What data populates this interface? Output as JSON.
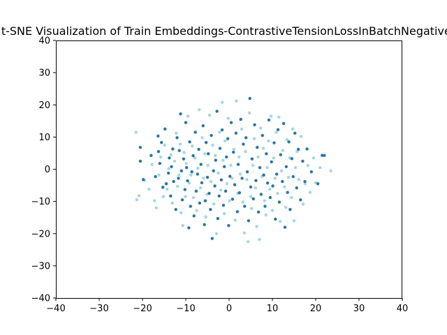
{
  "chart_data": {
    "type": "scatter",
    "title": "t-SNE Visualization of Train Embeddings-ContrastiveTensionLossInBatchNegatives",
    "xlabel": "",
    "ylabel": "",
    "xlim": [
      -40,
      40
    ],
    "ylim": [
      -40,
      40
    ],
    "xticks": [
      "−40",
      "−30",
      "−20",
      "−10",
      "0",
      "10",
      "20",
      "30",
      "40"
    ],
    "yticks": [
      "−40",
      "−30",
      "−20",
      "−10",
      "0",
      "10",
      "20",
      "30",
      "40"
    ],
    "grid": false,
    "legend": "none",
    "colors": {
      "dark": "#1f77b4",
      "light": "#9edae5"
    },
    "series": [
      {
        "color": "#1f77b4",
        "points": [
          [
            -20.5,
            6.8
          ],
          [
            -20.5,
            2.5
          ],
          [
            -19.8,
            -3.2
          ],
          [
            -18,
            4.3
          ],
          [
            -17,
            -2.3
          ],
          [
            -16.4,
            10.3
          ],
          [
            -16.3,
            5.5
          ],
          [
            -16,
            1.8
          ],
          [
            -15.6,
            8.3
          ],
          [
            -15.3,
            -5.6
          ],
          [
            -14.8,
            12.5
          ],
          [
            -14.5,
            -4.5
          ],
          [
            -14,
            -1.2
          ],
          [
            -13.8,
            3.5
          ],
          [
            -13.5,
            -8.3
          ],
          [
            -13.3,
            0.8
          ],
          [
            -13,
            6.3
          ],
          [
            -12.8,
            -3.8
          ],
          [
            -12.3,
            -12.5
          ],
          [
            -12,
            9.8
          ],
          [
            -11.7,
            -2.8
          ],
          [
            -11.5,
            5.8
          ],
          [
            -11.2,
            17.2
          ],
          [
            -11,
            -0.5
          ],
          [
            -10.8,
            -9.5
          ],
          [
            -10.5,
            3.2
          ],
          [
            -10.2,
            -6.3
          ],
          [
            -10,
            14.5
          ],
          [
            -9.8,
            0.5
          ],
          [
            -9.6,
            -3.6
          ],
          [
            -9.3,
            -18.2
          ],
          [
            -9.1,
            8.5
          ],
          [
            -8.9,
            -11.5
          ],
          [
            -8.6,
            -0.8
          ],
          [
            -8.3,
            4.2
          ],
          [
            -8.1,
            -14.5
          ],
          [
            -7.8,
            11.5
          ],
          [
            -7.6,
            -6.8
          ],
          [
            -7.3,
            -1.5
          ],
          [
            -7,
            6.2
          ],
          [
            -6.8,
            -10.5
          ],
          [
            -6.5,
            1.5
          ],
          [
            -6.3,
            -4.2
          ],
          [
            -6,
            13.5
          ],
          [
            -5.7,
            -17.2
          ],
          [
            -5.5,
            -9.8
          ],
          [
            -5.3,
            8.3
          ],
          [
            -5,
            -2.5
          ],
          [
            -4.8,
            4.8
          ],
          [
            -4.6,
            -7.5
          ],
          [
            -4.3,
            -12.5
          ],
          [
            -4.1,
            10.5
          ],
          [
            -3.9,
            -21.5
          ],
          [
            -3.6,
            -0.5
          ],
          [
            -3.3,
            -5.2
          ],
          [
            -3.1,
            2.8
          ],
          [
            -2.8,
            18
          ],
          [
            -2.6,
            -15.3
          ],
          [
            -2.3,
            -8.3
          ],
          [
            -2.1,
            6.5
          ],
          [
            -1.8,
            -3.3
          ],
          [
            -1.6,
            12.2
          ],
          [
            -1.3,
            -11.2
          ],
          [
            -1.1,
            0.8
          ],
          [
            -0.8,
            -6.8
          ],
          [
            -0.6,
            3.8
          ],
          [
            -0.3,
            9.5
          ],
          [
            -0.1,
            -17.5
          ],
          [
            0.2,
            -2.2
          ],
          [
            0.5,
            14.5
          ],
          [
            0.8,
            -9.3
          ],
          [
            1,
            5.3
          ],
          [
            1.3,
            -4.8
          ],
          [
            1.6,
            11.2
          ],
          [
            1.9,
            -13.2
          ],
          [
            2.1,
            1.5
          ],
          [
            2.4,
            -7.3
          ],
          [
            2.7,
            15.5
          ],
          [
            3,
            -2.8
          ],
          [
            3.3,
            7.8
          ],
          [
            3.6,
            -11.5
          ],
          [
            3.9,
            9.8
          ],
          [
            4.2,
            -0.8
          ],
          [
            4.5,
            -16
          ],
          [
            4.8,
            22
          ],
          [
            5,
            -5.5
          ],
          [
            5.3,
            3.2
          ],
          [
            5.6,
            -9.2
          ],
          [
            5.9,
            13.8
          ],
          [
            6.2,
            -3.5
          ],
          [
            6.5,
            6.8
          ],
          [
            6.8,
            -13.3
          ],
          [
            7.1,
            0.5
          ],
          [
            7.4,
            -7.8
          ],
          [
            7.7,
            10.5
          ],
          [
            8,
            -1.8
          ],
          [
            8.3,
            -11.5
          ],
          [
            8.6,
            4.8
          ],
          [
            8.9,
            -4.3
          ],
          [
            9.2,
            15.3
          ],
          [
            9.5,
            -8.8
          ],
          [
            9.8,
            2.3
          ],
          [
            10.1,
            -5.2
          ],
          [
            10.4,
            8.2
          ],
          [
            10.7,
            -15.5
          ],
          [
            11,
            -1.5
          ],
          [
            11.3,
            12.3
          ],
          [
            11.6,
            -10.2
          ],
          [
            11.9,
            4.5
          ],
          [
            12.3,
            -3.8
          ],
          [
            12.6,
            14.2
          ],
          [
            12.9,
            -18
          ],
          [
            13.2,
            0.8
          ],
          [
            13.5,
            -7.2
          ],
          [
            13.8,
            8.5
          ],
          [
            14.1,
            -12.5
          ],
          [
            14.5,
            3.3
          ],
          [
            14.8,
            -2.3
          ],
          [
            15.2,
            11.2
          ],
          [
            15.6,
            -5.8
          ],
          [
            16,
            6.2
          ],
          [
            16.5,
            -9.5
          ],
          [
            17,
            2.5
          ],
          [
            17.5,
            -3.8
          ],
          [
            18,
            6.3
          ],
          [
            19,
            -0.8
          ],
          [
            20.5,
            -4.5
          ],
          [
            21.5,
            4.3
          ],
          [
            22,
            4.3
          ]
        ]
      },
      {
        "color": "#9edae5",
        "points": [
          [
            -21.5,
            11.5
          ],
          [
            -21.3,
            -9.5
          ],
          [
            -20.8,
            -8.2
          ],
          [
            -19.5,
            -3.5
          ],
          [
            -18.5,
            -6.2
          ],
          [
            -17.8,
            1.5
          ],
          [
            -17.2,
            -9.8
          ],
          [
            -16.8,
            -12
          ],
          [
            -16.2,
            -1.8
          ],
          [
            -15.8,
            3.8
          ],
          [
            -15.2,
            -8.5
          ],
          [
            -14.9,
            7.5
          ],
          [
            -14.3,
            -6.2
          ],
          [
            -13.9,
            0.2
          ],
          [
            -13.4,
            4.5
          ],
          [
            -13.1,
            -10.5
          ],
          [
            -12.6,
            2.5
          ],
          [
            -12.2,
            11.2
          ],
          [
            -11.9,
            -5.3
          ],
          [
            -11.6,
            -1.8
          ],
          [
            -11.3,
            7.8
          ],
          [
            -11.1,
            -13.5
          ],
          [
            -10.7,
            -17.5
          ],
          [
            -10.4,
            5.2
          ],
          [
            -10.1,
            -8.5
          ],
          [
            -9.9,
            1.8
          ],
          [
            -9.5,
            16.5
          ],
          [
            -9.2,
            -4.3
          ],
          [
            -8.8,
            -1.8
          ],
          [
            -8.5,
            7.2
          ],
          [
            -8.2,
            -8.8
          ],
          [
            -7.9,
            3.5
          ],
          [
            -7.5,
            -12.8
          ],
          [
            -7.2,
            0.3
          ],
          [
            -6.9,
            18.5
          ],
          [
            -6.6,
            -5.8
          ],
          [
            -6.2,
            9.8
          ],
          [
            -5.9,
            -2.8
          ],
          [
            -5.6,
            4.8
          ],
          [
            -5.4,
            -14.8
          ],
          [
            -5.1,
            -7.8
          ],
          [
            -4.9,
            1.2
          ],
          [
            -4.5,
            16.8
          ],
          [
            -4.2,
            -3.8
          ],
          [
            -3.8,
            7.5
          ],
          [
            -3.5,
            -10.8
          ],
          [
            -3.2,
            4.3
          ],
          [
            -2.9,
            -20
          ],
          [
            -2.5,
            -1.2
          ],
          [
            -2.2,
            11.5
          ],
          [
            -1.9,
            -6.5
          ],
          [
            -1.6,
            20.8
          ],
          [
            -1.4,
            2.8
          ],
          [
            -1.1,
            -13.8
          ],
          [
            -0.9,
            8.8
          ],
          [
            -0.5,
            -4.5
          ],
          [
            -0.2,
            15.8
          ],
          [
            0.1,
            -9.8
          ],
          [
            0.4,
            1.2
          ],
          [
            0.7,
            -2.8
          ],
          [
            1.1,
            6.2
          ],
          [
            1.4,
            -15.8
          ],
          [
            1.7,
            21.2
          ],
          [
            2,
            -7.5
          ],
          [
            2.3,
            3.8
          ],
          [
            2.6,
            -1.5
          ],
          [
            2.9,
            12.5
          ],
          [
            3.2,
            -10.2
          ],
          [
            3.5,
            -19.8
          ],
          [
            3.8,
            5.5
          ],
          [
            4.1,
            -3.2
          ],
          [
            4.4,
            -22.5
          ],
          [
            4.7,
            17.5
          ],
          [
            5,
            -8.5
          ],
          [
            5.2,
            -12.2
          ],
          [
            5.5,
            1.2
          ],
          [
            5.8,
            9.5
          ],
          [
            6.1,
            -5.8
          ],
          [
            6.4,
            -17.8
          ],
          [
            6.7,
            3.8
          ],
          [
            7,
            -21.8
          ],
          [
            7.3,
            12.8
          ],
          [
            7.6,
            -2.2
          ],
          [
            7.9,
            6.5
          ],
          [
            8.2,
            -9.8
          ],
          [
            8.5,
            -14.2
          ],
          [
            8.8,
            0.5
          ],
          [
            9.1,
            8.8
          ],
          [
            9.4,
            -6.2
          ],
          [
            9.7,
            16.5
          ],
          [
            10,
            -12.8
          ],
          [
            10.3,
            3.5
          ],
          [
            10.6,
            -2.8
          ],
          [
            10.9,
            11.5
          ],
          [
            11.2,
            -7.5
          ],
          [
            11.5,
            16.2
          ],
          [
            11.8,
            -16.2
          ],
          [
            12.1,
            -0.5
          ],
          [
            12.4,
            5.8
          ],
          [
            12.8,
            -5.5
          ],
          [
            13.1,
            -11.8
          ],
          [
            13.4,
            9.2
          ],
          [
            13.7,
            -2.5
          ],
          [
            14,
            3.5
          ],
          [
            14.4,
            -8.8
          ],
          [
            14.7,
            12.5
          ],
          [
            15,
            -16
          ],
          [
            15.3,
            0.5
          ],
          [
            15.7,
            5.5
          ],
          [
            16.1,
            -3.2
          ],
          [
            16.6,
            10.2
          ],
          [
            17.1,
            -10.8
          ],
          [
            17.6,
            -4.5
          ],
          [
            18.2,
            1.2
          ],
          [
            18.7,
            -7.2
          ],
          [
            19.5,
            3.5
          ],
          [
            20,
            -4.2
          ],
          [
            21,
            0.5
          ],
          [
            23.5,
            -0.5
          ]
        ]
      }
    ]
  }
}
